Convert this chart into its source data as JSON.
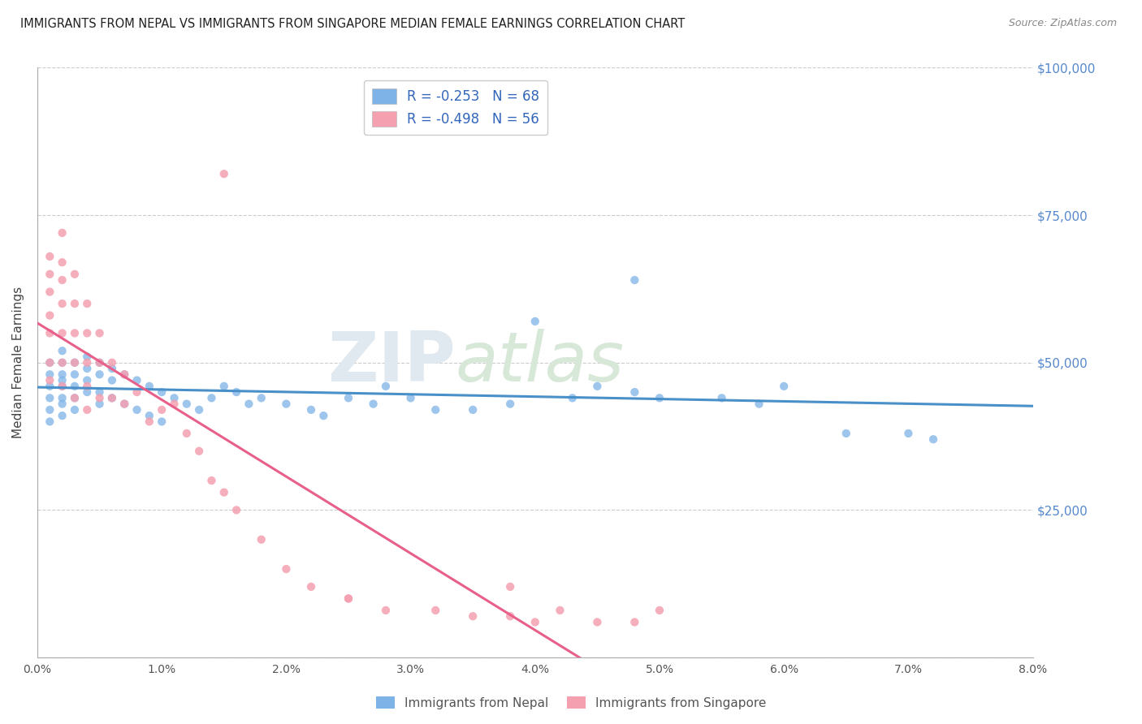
{
  "title": "IMMIGRANTS FROM NEPAL VS IMMIGRANTS FROM SINGAPORE MEDIAN FEMALE EARNINGS CORRELATION CHART",
  "source": "Source: ZipAtlas.com",
  "ylabel": "Median Female Earnings",
  "legend_bottom": [
    "Immigrants from Nepal",
    "Immigrants from Singapore"
  ],
  "nepal_R": -0.253,
  "nepal_N": 68,
  "singapore_R": -0.498,
  "singapore_N": 56,
  "nepal_color": "#7EB3E8",
  "singapore_color": "#F4A0B0",
  "nepal_line_color": "#4A90C8",
  "singapore_line_color": "#E8608A",
  "watermark_part1": "ZIP",
  "watermark_part2": "atlas",
  "xlim": [
    0.0,
    0.08
  ],
  "ylim": [
    0,
    100000
  ],
  "yticks": [
    0,
    25000,
    50000,
    75000,
    100000
  ],
  "ytick_labels": [
    "",
    "$25,000",
    "$50,000",
    "$75,000",
    "$100,000"
  ],
  "xticks": [
    0.0,
    0.01,
    0.02,
    0.03,
    0.04,
    0.05,
    0.06,
    0.07,
    0.08
  ],
  "xtick_labels": [
    "0.0%",
    "1.0%",
    "2.0%",
    "3.0%",
    "4.0%",
    "5.0%",
    "6.0%",
    "7.0%",
    "8.0%"
  ],
  "nepal_x": [
    0.001,
    0.001,
    0.001,
    0.001,
    0.001,
    0.001,
    0.002,
    0.002,
    0.002,
    0.002,
    0.002,
    0.002,
    0.002,
    0.002,
    0.003,
    0.003,
    0.003,
    0.003,
    0.003,
    0.004,
    0.004,
    0.004,
    0.004,
    0.005,
    0.005,
    0.005,
    0.005,
    0.006,
    0.006,
    0.006,
    0.007,
    0.007,
    0.008,
    0.008,
    0.009,
    0.009,
    0.01,
    0.01,
    0.011,
    0.012,
    0.013,
    0.014,
    0.015,
    0.016,
    0.017,
    0.018,
    0.02,
    0.022,
    0.023,
    0.025,
    0.027,
    0.028,
    0.03,
    0.032,
    0.035,
    0.038,
    0.04,
    0.043,
    0.045,
    0.048,
    0.05,
    0.055,
    0.06,
    0.065,
    0.07,
    0.072,
    0.058,
    0.048
  ],
  "nepal_y": [
    50000,
    48000,
    46000,
    44000,
    42000,
    40000,
    52000,
    50000,
    48000,
    47000,
    46000,
    44000,
    43000,
    41000,
    50000,
    48000,
    46000,
    44000,
    42000,
    51000,
    49000,
    47000,
    45000,
    50000,
    48000,
    45000,
    43000,
    49000,
    47000,
    44000,
    48000,
    43000,
    47000,
    42000,
    46000,
    41000,
    45000,
    40000,
    44000,
    43000,
    42000,
    44000,
    46000,
    45000,
    43000,
    44000,
    43000,
    42000,
    41000,
    44000,
    43000,
    46000,
    44000,
    42000,
    42000,
    43000,
    57000,
    44000,
    46000,
    45000,
    44000,
    44000,
    46000,
    38000,
    38000,
    37000,
    43000,
    64000
  ],
  "singapore_x": [
    0.001,
    0.001,
    0.001,
    0.001,
    0.001,
    0.001,
    0.001,
    0.002,
    0.002,
    0.002,
    0.002,
    0.002,
    0.002,
    0.002,
    0.003,
    0.003,
    0.003,
    0.003,
    0.003,
    0.004,
    0.004,
    0.004,
    0.004,
    0.004,
    0.005,
    0.005,
    0.005,
    0.006,
    0.006,
    0.007,
    0.007,
    0.008,
    0.009,
    0.01,
    0.011,
    0.012,
    0.013,
    0.014,
    0.015,
    0.016,
    0.018,
    0.02,
    0.022,
    0.025,
    0.028,
    0.032,
    0.035,
    0.038,
    0.04,
    0.042,
    0.045,
    0.048,
    0.05,
    0.038,
    0.025,
    0.015
  ],
  "singapore_y": [
    68000,
    65000,
    62000,
    58000,
    55000,
    50000,
    47000,
    72000,
    67000,
    64000,
    60000,
    55000,
    50000,
    46000,
    65000,
    60000,
    55000,
    50000,
    44000,
    60000,
    55000,
    50000,
    46000,
    42000,
    55000,
    50000,
    44000,
    50000,
    44000,
    48000,
    43000,
    45000,
    40000,
    42000,
    43000,
    38000,
    35000,
    30000,
    28000,
    25000,
    20000,
    15000,
    12000,
    10000,
    8000,
    8000,
    7000,
    7000,
    6000,
    8000,
    6000,
    6000,
    8000,
    12000,
    10000,
    82000
  ]
}
